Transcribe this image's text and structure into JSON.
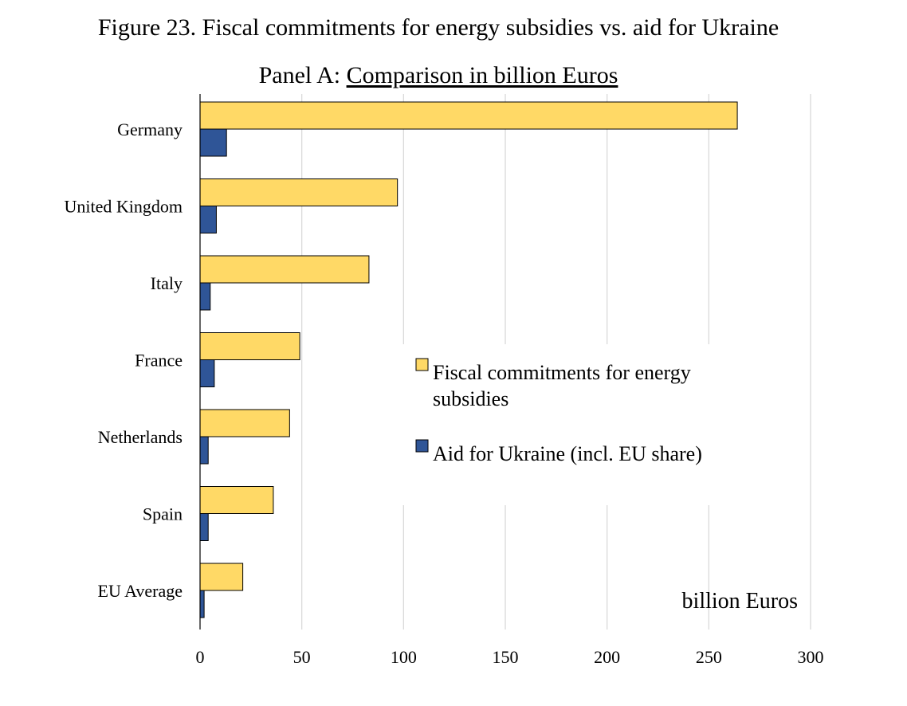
{
  "figure": {
    "title": "Figure 23. Fiscal commitments for energy subsidies vs. aid for Ukraine",
    "panel_prefix": "Panel A: ",
    "panel_title": "Comparison in billion Euros"
  },
  "colors": {
    "energy": "#FFD966",
    "ukraine": "#2F5597",
    "grid": "#D9D9D9",
    "bar_stroke": "#000000"
  },
  "chart_data": {
    "type": "bar",
    "orientation": "horizontal",
    "categories": [
      "Germany",
      "United Kingdom",
      "Italy",
      "France",
      "Netherlands",
      "Spain",
      "EU Average"
    ],
    "series": [
      {
        "name": "Fiscal commitments for energy subsidies",
        "legend_lines": [
          "Fiscal commitments for energy",
          "subsidies"
        ],
        "color_key": "energy",
        "values": [
          264,
          97,
          83,
          49,
          44,
          36,
          21
        ]
      },
      {
        "name": "Aid for Ukraine (incl. EU share)",
        "legend_lines": [
          "Aid for Ukraine (incl. EU share)"
        ],
        "color_key": "ukraine",
        "values": [
          13,
          8,
          5,
          7,
          4,
          4,
          2
        ]
      }
    ],
    "xlim": [
      0,
      300
    ],
    "xticks": [
      0,
      50,
      100,
      150,
      200,
      250,
      300
    ],
    "xlabel": "billion Euros",
    "grid": true,
    "legend_position": "center-right"
  }
}
